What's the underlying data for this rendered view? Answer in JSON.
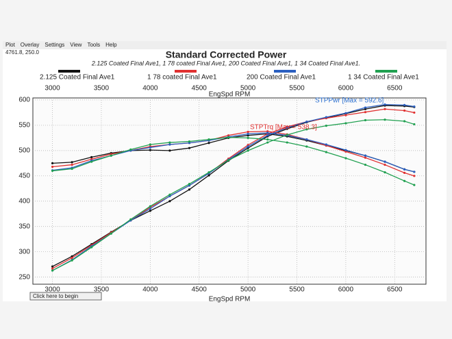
{
  "menu": [
    "Plot",
    "Overlay",
    "Settings",
    "View",
    "Tools",
    "Help"
  ],
  "status": "4761.8, 250.0",
  "button": "Click here to begin",
  "chart_data": {
    "type": "line",
    "title": "Standard Corrected Power",
    "subtitle": "2.125 Coated Final Ave1, 1 78 coated Final Ave1, 200 Coated Final Ave1, 1 34 Coated Final Ave1.",
    "x_label": "EngSpd RPM",
    "x": [
      3000,
      3200,
      3400,
      3600,
      3800,
      4000,
      4200,
      4400,
      4600,
      4800,
      5000,
      5200,
      5400,
      5600,
      5800,
      6000,
      6200,
      6400,
      6600,
      6700
    ],
    "xlim": [
      2800,
      6820
    ],
    "xticks": [
      3000,
      3500,
      4000,
      4500,
      5000,
      5500,
      6000,
      6500
    ],
    "ylim": [
      236,
      604
    ],
    "yticks": [
      250,
      300,
      350,
      400,
      450,
      500,
      550,
      600
    ],
    "grid": true,
    "annotations": [
      {
        "text": "STPPwr [Max = 592.6]",
        "color": "#2a6fd0"
      },
      {
        "text": "STPTrq [Max = 538.3]",
        "color": "#e03030"
      }
    ],
    "series": [
      {
        "name": "2.125 Coated Final Ave1",
        "color": "#111111",
        "power": [
          271,
          291,
          315,
          339,
          362,
          381,
          400,
          423,
          451,
          480,
          505,
          528,
          543,
          556,
          565,
          573,
          582,
          589,
          588,
          586
        ],
        "torque": [
          475,
          477,
          487,
          495,
          500,
          501,
          500,
          505,
          515,
          525,
          530,
          533,
          528,
          520,
          510,
          500,
          490,
          478,
          463,
          458
        ]
      },
      {
        "name": "1 78 coated Final Ave1",
        "color": "#e03030",
        "power": [
          267,
          288,
          313,
          338,
          362,
          388,
          410,
          431,
          455,
          484,
          511,
          533,
          547,
          557,
          564,
          570,
          576,
          582,
          579,
          575
        ],
        "torque": [
          468,
          472,
          483,
          493,
          500,
          508,
          512,
          515,
          520,
          530,
          537,
          538,
          532,
          522,
          510,
          498,
          486,
          472,
          456,
          450
        ]
      },
      {
        "name": "200 Coated Final Ave1",
        "color": "#2a5fc0",
        "power": [
          263,
          284,
          311,
          336,
          362,
          385,
          410,
          431,
          455,
          482,
          508,
          530,
          545,
          557,
          566,
          574,
          585,
          591,
          590,
          587
        ],
        "torque": [
          461,
          466,
          480,
          490,
          500,
          506,
          512,
          515,
          520,
          527,
          533,
          535,
          530,
          522,
          512,
          501,
          490,
          478,
          463,
          458
        ]
      },
      {
        "name": "1 34 Coated Final Ave1",
        "color": "#20a050",
        "power": [
          263,
          283,
          309,
          336,
          364,
          390,
          413,
          434,
          457,
          481,
          500,
          516,
          531,
          542,
          549,
          554,
          560,
          561,
          558,
          552
        ],
        "torque": [
          460,
          464,
          478,
          490,
          502,
          512,
          516,
          518,
          522,
          526,
          525,
          522,
          516,
          508,
          497,
          485,
          472,
          457,
          440,
          432
        ]
      }
    ]
  }
}
